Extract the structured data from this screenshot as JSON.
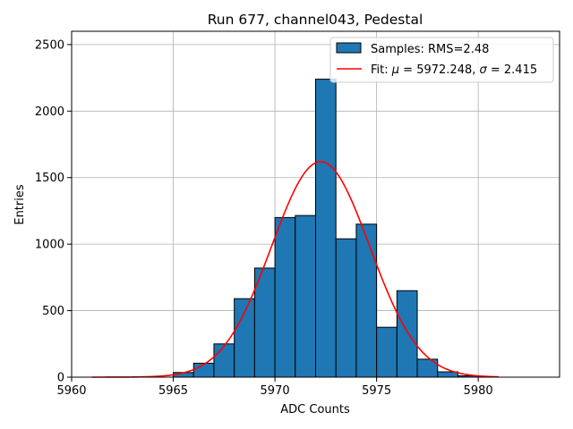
{
  "chart_data": {
    "type": "bar",
    "title": "Run 677, channel043, Pedestal",
    "xlabel": "ADC Counts",
    "ylabel": "Entries",
    "xlim": [
      5960,
      5984
    ],
    "ylim": [
      0,
      2600
    ],
    "xticks": [
      5960,
      5965,
      5970,
      5975,
      5980
    ],
    "yticks": [
      0,
      500,
      1000,
      1500,
      2000,
      2500
    ],
    "grid": true,
    "legend_position": "top-right",
    "bar_color": "#1f77b4",
    "fit_color": "#ff0000",
    "histogram": {
      "name": "Samples: RMS=2.48",
      "bins": [
        {
          "x0": 5965,
          "x1": 5966,
          "value": 35
        },
        {
          "x0": 5966,
          "x1": 5967,
          "value": 105
        },
        {
          "x0": 5967,
          "x1": 5968,
          "value": 250
        },
        {
          "x0": 5968,
          "x1": 5969,
          "value": 590
        },
        {
          "x0": 5969,
          "x1": 5970,
          "value": 820
        },
        {
          "x0": 5970,
          "x1": 5971,
          "value": 1200
        },
        {
          "x0": 5971,
          "x1": 5972,
          "value": 1215
        },
        {
          "x0": 5972,
          "x1": 5973,
          "value": 2240
        },
        {
          "x0": 5973,
          "x1": 5974,
          "value": 1040
        },
        {
          "x0": 5974,
          "x1": 5975,
          "value": 1150
        },
        {
          "x0": 5975,
          "x1": 5976,
          "value": 375
        },
        {
          "x0": 5976,
          "x1": 5977,
          "value": 650
        },
        {
          "x0": 5977,
          "x1": 5978,
          "value": 135
        },
        {
          "x0": 5978,
          "x1": 5979,
          "value": 40
        },
        {
          "x0": 5979,
          "x1": 5980,
          "value": 10
        }
      ]
    },
    "fit": {
      "name_prefix": "Fit: ",
      "mu_symbol": "μ",
      "mu_text": " = 5972.248, ",
      "sigma_symbol": "σ",
      "sigma_text": " = 2.415",
      "mu": 5972.248,
      "sigma": 2.415,
      "amplitude": 1620,
      "x_range": [
        5961,
        5981
      ]
    }
  }
}
